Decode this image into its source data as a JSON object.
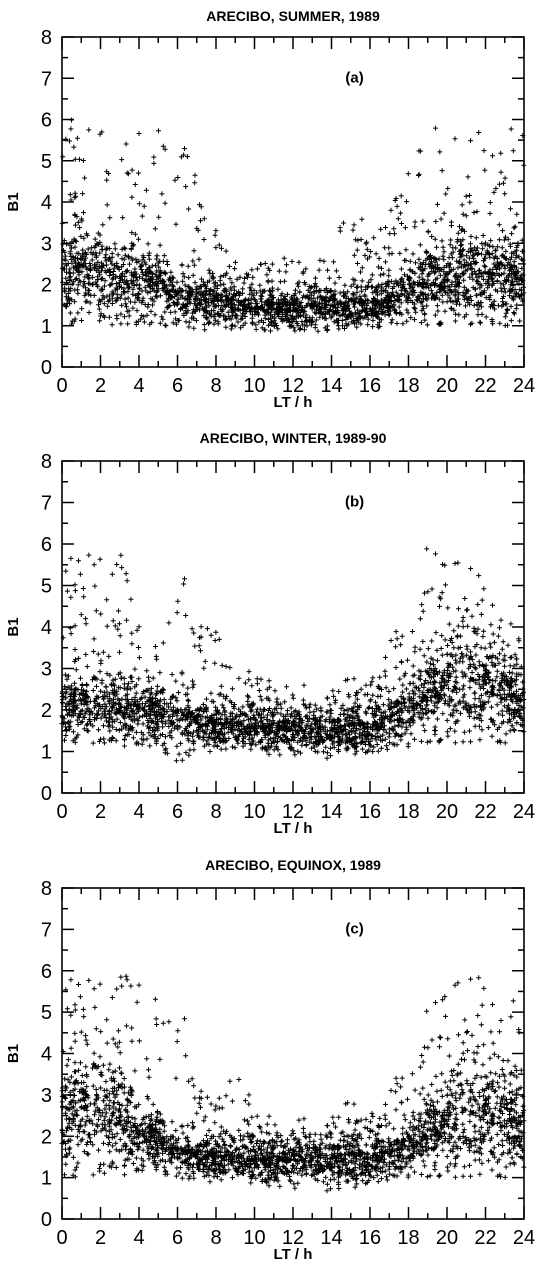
{
  "chart_data": [
    {
      "type": "scatter",
      "title": "ARECIBO, SUMMER, 1989",
      "panel_label": "(a)",
      "xlabel": "LT / h",
      "ylabel": "B1",
      "xlim": [
        0,
        24
      ],
      "ylim": [
        0,
        8
      ],
      "xticks": [
        0,
        2,
        4,
        6,
        8,
        10,
        12,
        14,
        16,
        18,
        20,
        22,
        24
      ],
      "yticks": [
        0,
        1,
        2,
        3,
        4,
        5,
        6,
        7,
        8
      ],
      "marker": "+",
      "grid": false,
      "density_profile": {
        "lt": [
          0,
          1,
          2,
          3,
          4,
          5,
          6,
          7,
          8,
          9,
          10,
          11,
          12,
          13,
          14,
          15,
          16,
          17,
          18,
          19,
          20,
          21,
          22,
          23,
          24
        ],
        "median_b1": [
          2.3,
          2.4,
          2.2,
          2.0,
          2.1,
          2.0,
          1.7,
          1.6,
          1.6,
          1.5,
          1.45,
          1.4,
          1.35,
          1.4,
          1.4,
          1.45,
          1.5,
          1.6,
          1.8,
          2.0,
          2.1,
          2.2,
          2.2,
          2.2,
          2.2
        ],
        "upper_envelope_b1": [
          6.0,
          6.0,
          6.0,
          5.3,
          6.0,
          6.0,
          6.0,
          4.6,
          3.4,
          3.0,
          2.6,
          2.6,
          2.8,
          2.5,
          2.9,
          4.3,
          3.3,
          3.7,
          5.0,
          6.0,
          5.7,
          5.5,
          6.0,
          6.0,
          6.0
        ],
        "lower_envelope_b1": [
          1.0,
          1.0,
          1.0,
          1.0,
          1.0,
          1.0,
          1.0,
          0.9,
          0.9,
          0.9,
          0.85,
          0.85,
          0.85,
          0.85,
          0.85,
          0.85,
          0.9,
          0.9,
          1.0,
          1.0,
          1.0,
          1.0,
          1.0,
          1.0,
          1.0
        ]
      }
    },
    {
      "type": "scatter",
      "title": "ARECIBO, WINTER, 1989-90",
      "panel_label": "(b)",
      "xlabel": "LT / h",
      "ylabel": "B1",
      "xlim": [
        0,
        24
      ],
      "ylim": [
        0,
        8
      ],
      "xticks": [
        0,
        2,
        4,
        6,
        8,
        10,
        12,
        14,
        16,
        18,
        20,
        22,
        24
      ],
      "yticks": [
        0,
        1,
        2,
        3,
        4,
        5,
        6,
        7,
        8
      ],
      "marker": "+",
      "grid": false,
      "density_profile": {
        "lt": [
          0,
          1,
          2,
          3,
          4,
          5,
          6,
          7,
          8,
          9,
          10,
          11,
          12,
          13,
          14,
          15,
          16,
          17,
          18,
          19,
          20,
          21,
          22,
          23,
          24
        ],
        "median_b1": [
          2.0,
          2.1,
          2.1,
          2.0,
          2.0,
          1.9,
          1.8,
          1.7,
          1.65,
          1.6,
          1.6,
          1.55,
          1.5,
          1.45,
          1.45,
          1.5,
          1.55,
          1.7,
          2.0,
          2.3,
          2.6,
          2.7,
          2.6,
          2.4,
          2.2
        ],
        "upper_envelope_b1": [
          5.8,
          6.0,
          6.0,
          6.0,
          4.2,
          3.8,
          6.0,
          4.2,
          4.0,
          3.0,
          2.9,
          2.8,
          2.8,
          2.7,
          2.7,
          2.8,
          3.0,
          3.6,
          4.6,
          6.0,
          5.6,
          5.6,
          5.2,
          5.0,
          4.5
        ],
        "lower_envelope_b1": [
          1.2,
          1.2,
          1.1,
          1.1,
          1.1,
          1.1,
          0.7,
          1.0,
          1.0,
          1.0,
          1.0,
          0.9,
          0.9,
          0.8,
          0.8,
          0.9,
          0.9,
          1.0,
          1.1,
          1.2,
          1.2,
          1.2,
          1.2,
          1.2,
          1.3
        ]
      }
    },
    {
      "type": "scatter",
      "title": "ARECIBO, EQUINOX, 1989",
      "panel_label": "(c)",
      "xlabel": "LT / h",
      "ylabel": "B1",
      "xlim": [
        0,
        24
      ],
      "ylim": [
        0,
        8
      ],
      "xticks": [
        0,
        2,
        4,
        6,
        8,
        10,
        12,
        14,
        16,
        18,
        20,
        22,
        24
      ],
      "yticks": [
        0,
        1,
        2,
        3,
        4,
        5,
        6,
        7,
        8
      ],
      "marker": "+",
      "grid": false,
      "density_profile": {
        "lt": [
          0,
          1,
          2,
          3,
          4,
          5,
          6,
          7,
          8,
          9,
          10,
          11,
          12,
          13,
          14,
          15,
          16,
          17,
          18,
          19,
          20,
          21,
          22,
          23,
          24
        ],
        "median_b1": [
          2.4,
          2.6,
          2.6,
          2.4,
          2.0,
          1.9,
          1.6,
          1.5,
          1.5,
          1.45,
          1.45,
          1.4,
          1.4,
          1.4,
          1.4,
          1.4,
          1.45,
          1.5,
          1.7,
          2.0,
          2.3,
          2.5,
          2.5,
          2.4,
          2.3
        ],
        "upper_envelope_b1": [
          6.0,
          6.0,
          6.0,
          6.0,
          6.0,
          6.0,
          6.0,
          3.3,
          2.8,
          4.0,
          2.6,
          2.6,
          2.5,
          2.6,
          2.7,
          2.9,
          2.7,
          3.0,
          4.3,
          5.1,
          5.6,
          5.9,
          6.0,
          6.0,
          6.0
        ],
        "lower_envelope_b1": [
          1.0,
          1.0,
          1.0,
          1.0,
          1.1,
          1.1,
          1.0,
          0.9,
          0.9,
          0.9,
          0.8,
          0.8,
          0.7,
          0.8,
          0.6,
          0.7,
          0.8,
          0.9,
          1.0,
          1.0,
          1.0,
          1.0,
          1.0,
          1.0,
          1.0
        ]
      }
    }
  ]
}
